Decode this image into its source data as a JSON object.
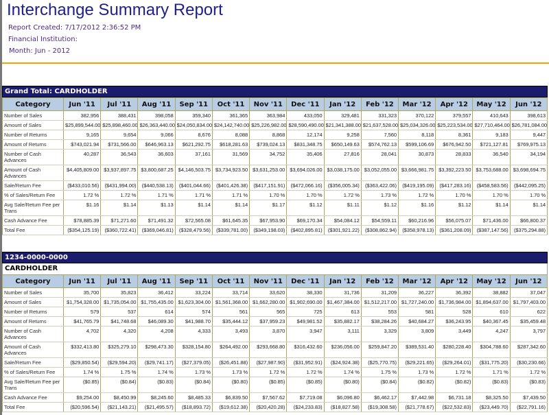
{
  "header": {
    "title": "Interchange Summary Report",
    "report_created": "Report Created: 7/17/2012 2:36:52 PM",
    "financial_institution": "Financial Institution:",
    "month": "Month: Jun - 2012"
  },
  "columns": [
    "Category",
    "Jun '11",
    "Jul '11",
    "Aug '11",
    "Sep '11",
    "Oct '11",
    "Nov '11",
    "Dec '11",
    "Jan '12",
    "Feb '12",
    "Mar '12",
    "Apr '12",
    "May '12",
    "Jun '12"
  ],
  "colors": {
    "bar": "#1c1c6c",
    "header_bg": "#b8cce4",
    "accent": "#f5a300"
  },
  "tables": [
    {
      "title": "Grand Total: CARDHOLDER",
      "subtitle": null,
      "rows": [
        {
          "label": "Number of Sales",
          "values": [
            "382,956",
            "388,431",
            "398,058",
            "359,340",
            "361,365",
            "363,984",
            "433,050",
            "329,481",
            "331,323",
            "370,122",
            "379,557",
            "410,643",
            "398,613"
          ]
        },
        {
          "label": "Amount of Sales",
          "values": [
            "$25,899,544.00",
            "$25,898,460.00",
            "$26,363,440.00",
            "$24,050,834.00",
            "$24,142,740.00",
            "$25,226,982.00",
            "$28,590,490.00",
            "$21,341,388.00",
            "$21,637,528.00",
            "$25,034,326.00",
            "$25,223,534.00",
            "$27,710,464.00",
            "$26,781,084.00"
          ]
        },
        {
          "label": "Number of Returns",
          "values": [
            "9,165",
            "9,654",
            "9,066",
            "8,676",
            "8,088",
            "8,868",
            "12,174",
            "9,258",
            "7,560",
            "8,118",
            "8,361",
            "9,183",
            "9,447"
          ]
        },
        {
          "label": "Amount of Returns",
          "values": [
            "$743,021.94",
            "$731,566.00",
            "$646,963.13",
            "$621,292.75",
            "$618,281.63",
            "$739,024.13",
            "$831,348.75",
            "$650,149.63",
            "$574,762.13",
            "$599,106.69",
            "$676,942.50",
            "$721,127.81",
            "$769,975.13"
          ]
        },
        {
          "label": "Number of Cash Advances",
          "values": [
            "40,287",
            "36,543",
            "36,603",
            "37,161",
            "31,569",
            "34,752",
            "35,406",
            "27,816",
            "28,041",
            "30,873",
            "28,833",
            "36,540",
            "34,194"
          ]
        },
        {
          "label": "Amount of Cash Advances",
          "values": [
            "$4,405,809.00",
            "$3,937,897.75",
            "$3,800,687.25",
            "$4,146,503.75",
            "$3,734,923.50",
            "$3,631,253.00",
            "$3,694,026.00",
            "$3,038,175.00",
            "$3,052,055.00",
            "$3,666,981.75",
            "$3,392,223.50",
            "$3,753,688.00",
            "$3,698,694.75"
          ]
        },
        {
          "label": "Sale/Return Fee",
          "values": [
            "($433,010.56)",
            "($431,994.00)",
            "($440,538.13)",
            "($401,044.66)",
            "($401,426.38)",
            "($417,151.91)",
            "($472,066.16)",
            "($356,005.34)",
            "($363,422.06)",
            "($419,195.09)",
            "($417,283.16)",
            "($458,583.56)",
            "($442,095.25)"
          ]
        },
        {
          "label": "% of Sales/Return Fee",
          "values": [
            "1.72 %",
            "1.72 %",
            "1.71 %",
            "1.71 %",
            "1.71 %",
            "1.70 %",
            "1.70 %",
            "1.72 %",
            "1.73 %",
            "1.72 %",
            "1.70 %",
            "1.70 %",
            "1.70 %"
          ]
        },
        {
          "label": "Avg Sale/Return Fee per Trans",
          "values": [
            "$1.16",
            "$1.14",
            "$1.13",
            "$1.14",
            "$1.14",
            "$1.17",
            "$1.12",
            "$1.11",
            "$1.12",
            "$1.16",
            "$1.12",
            "$1.14",
            "$1.14"
          ]
        },
        {
          "label": "Cash Advance Fee",
          "values": [
            "$78,885.39",
            "$71,271.60",
            "$71,491.32",
            "$72,565.08",
            "$61,645.35",
            "$67,953.90",
            "$69,170.34",
            "$54,084.12",
            "$54,559.11",
            "$60,216.96",
            "$56,075.07",
            "$71,436.00",
            "$66,800.37"
          ]
        },
        {
          "label": "Total Fee",
          "values": [
            "($354,125.19)",
            "($360,722.41)",
            "($369,046.81)",
            "($328,479.56)",
            "($339,781.00)",
            "($349,198.03)",
            "($402,895.81)",
            "($301,921.22)",
            "($308,862.94)",
            "($358,978.13)",
            "($361,208.09)",
            "($387,147.56)",
            "($375,294.88)"
          ]
        }
      ]
    },
    {
      "title": "1234-0000-0000",
      "subtitle": "CARDHOLDER",
      "rows": [
        {
          "label": "Number of Sales",
          "values": [
            "35,700",
            "35,823",
            "36,412",
            "33,224",
            "33,714",
            "33,620",
            "38,330",
            "31,736",
            "31,209",
            "36,227",
            "36,392",
            "38,882",
            "37,047"
          ]
        },
        {
          "label": "Amount of Sales",
          "values": [
            "$1,754,328.00",
            "$1,735,054.00",
            "$1,755,435.00",
            "$1,623,304.00",
            "$1,561,368.00",
            "$1,662,280.00",
            "$1,902,690.00",
            "$1,467,384.00",
            "$1,512,217.00",
            "$1,727,240.00",
            "$1,736,984.00",
            "$1,894,637.00",
            "$1,797,403.00"
          ]
        },
        {
          "label": "Number of Returns",
          "values": [
            "579",
            "537",
            "614",
            "574",
            "561",
            "565",
            "725",
            "613",
            "553",
            "581",
            "528",
            "610",
            "622"
          ]
        },
        {
          "label": "Amount of Returns",
          "values": [
            "$41,765.79",
            "$41,748.68",
            "$46,089.30",
            "$41,988.70",
            "$35,444.12",
            "$37,959.23",
            "$49,981.52",
            "$35,882.17",
            "$38,284.26",
            "$40,684.27",
            "$36,243.95",
            "$40,367.45",
            "$35,459.48"
          ]
        },
        {
          "label": "Number of Cash Advances",
          "values": [
            "4,702",
            "4,320",
            "4,208",
            "4,333",
            "3,493",
            "3,870",
            "3,947",
            "3,111",
            "3,329",
            "3,809",
            "3,449",
            "4,247",
            "3,797"
          ]
        },
        {
          "label": "Amount of Cash Advances",
          "values": [
            "$332,413.80",
            "$325,279.10",
            "$298,473.30",
            "$328,154.80",
            "$264,492.00",
            "$293,668.80",
            "$316,432.60",
            "$236,056.00",
            "$259,847.20",
            "$389,531.40",
            "$280,228.40",
            "$304,788.60",
            "$287,342.60"
          ]
        },
        {
          "label": "Sale/Return Fee",
          "values": [
            "($29,850.54)",
            "($29,594.20)",
            "($29,741.17)",
            "($27,379.05)",
            "($26,451.88)",
            "($27,987.90)",
            "($31,952.91)",
            "($24,924.38)",
            "($25,770.75)",
            "($29,221.65)",
            "($29,264.01)",
            "($31,775.20)",
            "($30,230.66)"
          ]
        },
        {
          "label": "% of Sales/Return Fee",
          "values": [
            "1.74 %",
            "1.75 %",
            "1.74 %",
            "1.73 %",
            "1.73 %",
            "1.72 %",
            "1.72 %",
            "1.74 %",
            "1.75 %",
            "1.73 %",
            "1.72 %",
            "1.71 %",
            "1.72 %"
          ]
        },
        {
          "label": "Avg Sale/Return Fee per Trans",
          "values": [
            "($0.85)",
            "($0.84)",
            "($0.83)",
            "($0.84)",
            "($0.80)",
            "($0.85)",
            "($0.85)",
            "($0.80)",
            "($0.84)",
            "($0.82)",
            "($0.82)",
            "($0.83)",
            "($0.83)"
          ]
        },
        {
          "label": "Cash Advance Fee",
          "values": [
            "$9,254.00",
            "$8,450.99",
            "$8,245.60",
            "$8,485.33",
            "$6,839.50",
            "$7,567.62",
            "$7,719.08",
            "$6,096.80",
            "$6,462.17",
            "$7,442.98",
            "$6,731.18",
            "$8,325.50",
            "$7,439.50"
          ]
        },
        {
          "label": "Total Fee",
          "values": [
            "($20,596.54)",
            "($21,143.21)",
            "($21,495.57)",
            "($18,893.72)",
            "($19,612.38)",
            "($20,420.28)",
            "($24,233.83)",
            "($18,827.58)",
            "($19,308.58)",
            "($21,778.67)",
            "($22,532.83)",
            "($23,449.70)",
            "($22,791.16)"
          ]
        }
      ]
    }
  ]
}
